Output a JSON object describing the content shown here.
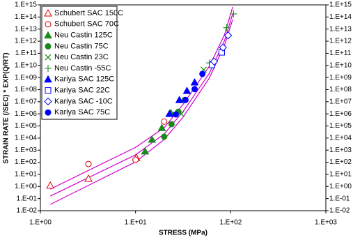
{
  "chart_data": {
    "type": "scatter",
    "xlabel": "STRESS (MPa)",
    "ylabel": "STRAIN RATE (/SEC) * EXP(Q/RT)",
    "xscale": "log",
    "yscale": "log",
    "xlim": [
      1,
      1000
    ],
    "ylim": [
      0.01,
      1000000000000000.0
    ],
    "xticks": [
      {
        "value": 1,
        "label": "1.E+00"
      },
      {
        "value": 10,
        "label": "1.E+01"
      },
      {
        "value": 100,
        "label": "1.E+02"
      },
      {
        "value": 1000,
        "label": "1.E+03"
      }
    ],
    "yticks": [
      {
        "value": 0.01,
        "label": "1.E-02"
      },
      {
        "value": 0.1,
        "label": "1.E-01"
      },
      {
        "value": 1,
        "label": "1.E+00"
      },
      {
        "value": 10,
        "label": "1.E+01"
      },
      {
        "value": 100,
        "label": "1.E+02"
      },
      {
        "value": 1000,
        "label": "1.E+03"
      },
      {
        "value": 10000,
        "label": "1.E+04"
      },
      {
        "value": 100000,
        "label": "1.E+05"
      },
      {
        "value": 1000000,
        "label": "1.E+06"
      },
      {
        "value": 10000000,
        "label": "1.E+07"
      },
      {
        "value": 100000000,
        "label": "1.E+08"
      },
      {
        "value": 1000000000,
        "label": "1.E+09"
      },
      {
        "value": 10000000000,
        "label": "1.E+10"
      },
      {
        "value": 100000000000,
        "label": "1.E+11"
      },
      {
        "value": 1000000000000,
        "label": "1.E+12"
      },
      {
        "value": 10000000000000,
        "label": "1.E+13"
      },
      {
        "value": 100000000000000,
        "label": "1.E+14"
      },
      {
        "value": 1000000000000000,
        "label": "1.E+15"
      }
    ],
    "series": [
      {
        "name": "Schubert SAC 150C",
        "color": "#e00000",
        "marker": "triangle-open",
        "x": [
          1.27,
          3.2,
          10.2
        ],
        "values": [
          1.2,
          4.5,
          240
        ]
      },
      {
        "name": "Schubert SAC 70C",
        "color": "#e00000",
        "marker": "circle-open",
        "x": [
          3.2,
          10,
          20
        ],
        "values": [
          72,
          160,
          230000
        ]
      },
      {
        "name": "Neu Castin 125C",
        "color": "#1a8a1a",
        "marker": "triangle",
        "x": [
          12.6,
          14.9,
          18.9,
          23.5
        ],
        "values": [
          800,
          7600,
          70000,
          1200000
        ]
      },
      {
        "name": "Neu Castin 75C",
        "color": "#1a8a1a",
        "marker": "circle",
        "x": [
          20,
          23.9,
          28.2,
          33
        ],
        "values": [
          13000,
          140000,
          1500000,
          14000000
        ]
      },
      {
        "name": "Neu Castin 23C",
        "color": "#1a8a1a",
        "marker": "x",
        "x": [
          30.3,
          52
        ],
        "values": [
          1000000,
          4400000000
        ]
      },
      {
        "name": "Neu Castin -55C",
        "color": "#1a8a1a",
        "marker": "plus",
        "x": [
          60,
          90.6,
          107
        ],
        "values": [
          16000000000,
          13000000000000,
          180000000000000
        ]
      },
      {
        "name": "Kariya SAC 125C",
        "color": "#0000ff",
        "marker": "triangle",
        "x": [
          22.7,
          28.9,
          34.7,
          41.8
        ],
        "values": [
          1000000,
          14000000,
          80000000,
          400000000
        ]
      },
      {
        "name": "Kariya SAC 22C",
        "color": "#0000ff",
        "marker": "square-open",
        "x": [
          63.6,
          80.5
        ],
        "values": [
          11000000000,
          120000000000
        ]
      },
      {
        "name": "Kariya SAC -10C",
        "color": "#0000ff",
        "marker": "diamond-open",
        "x": [
          67,
          83,
          93.9
        ],
        "values": [
          21000000000,
          300000000000,
          3000000000000
        ]
      },
      {
        "name": "Kariya SAC 75C",
        "color": "#0000ff",
        "marker": "circle",
        "x": [
          26.5,
          33.5,
          41.8,
          50.4
        ],
        "values": [
          900000,
          14000000,
          110000000,
          2000000000
        ]
      }
    ],
    "fit_curves": [
      {
        "color": "#cc00cc",
        "x": [
          1.27,
          10,
          20,
          31.5,
          59.6,
          86,
          105
        ],
        "values": [
          0.6,
          1700,
          72000,
          5800000,
          8500000000,
          3300000000000,
          680000000000000
        ]
      },
      {
        "color": "#cc00cc",
        "x": [
          1.27,
          10,
          20,
          31.5,
          59.6,
          86,
          105
        ],
        "values": [
          0.16,
          410,
          22000,
          1500000,
          2200000000,
          1100000000000,
          180000000000000
        ]
      },
      {
        "color": "#cc00cc",
        "x": [
          1.27,
          10,
          20,
          31.5,
          59.6,
          86,
          105
        ],
        "values": [
          0.033,
          107,
          7600,
          520000,
          900000000,
          460000000000,
          63000000000000
        ]
      }
    ]
  }
}
